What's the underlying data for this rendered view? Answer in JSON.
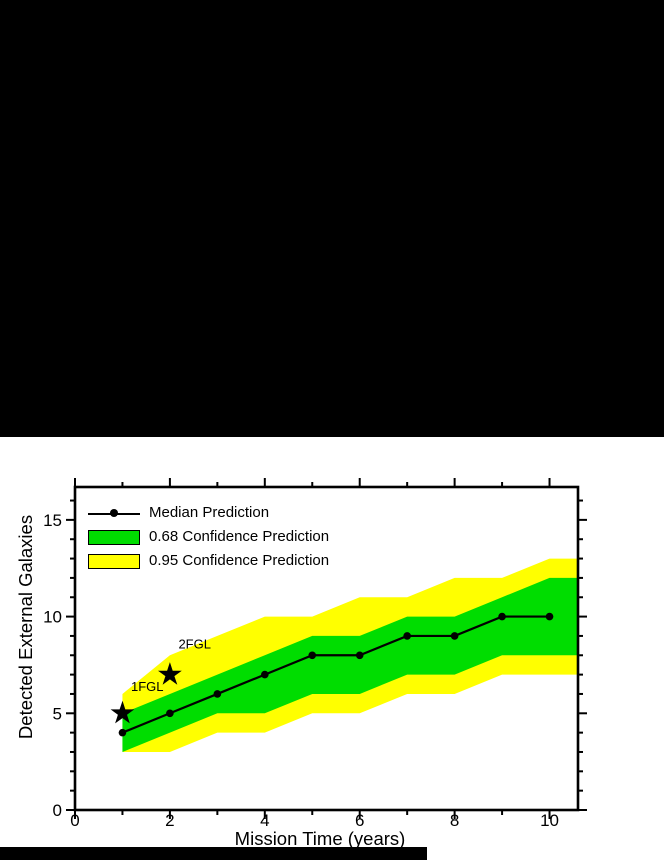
{
  "page": {
    "background": "#000000",
    "panel_background": "#ffffff"
  },
  "chart_data": {
    "type": "line",
    "title": "",
    "xlabel": "Mission Time (years)",
    "ylabel": "Detected External Galaxies",
    "xlim": [
      0,
      10.6
    ],
    "ylim": [
      0,
      16.7
    ],
    "xticks_major": [
      0,
      2,
      4,
      6,
      8,
      10
    ],
    "xticks_minor": [
      1,
      3,
      5,
      7,
      9
    ],
    "yticks_major": [
      0,
      5,
      10,
      15
    ],
    "yticks_minor": [
      1,
      2,
      3,
      4,
      6,
      7,
      8,
      9,
      11,
      12,
      13,
      14,
      16
    ],
    "grid": false,
    "x": [
      1,
      2,
      3,
      4,
      5,
      6,
      7,
      8,
      9,
      10
    ],
    "series": [
      {
        "name": "Median Prediction",
        "type": "line",
        "color": "#000000",
        "values": [
          4,
          5,
          6,
          7,
          8,
          8,
          9,
          9,
          10,
          10
        ]
      },
      {
        "name": "0.68 Confidence Prediction",
        "type": "band",
        "color": "#00dd00",
        "lower": [
          3,
          4,
          5,
          5,
          6,
          6,
          7,
          7,
          8,
          8
        ],
        "upper": [
          5,
          6,
          7,
          8,
          9,
          9,
          10,
          10,
          11,
          12
        ]
      },
      {
        "name": "0.95 Confidence Prediction",
        "type": "band",
        "color": "#ffff00",
        "lower": [
          3,
          3,
          4,
          4,
          5,
          5,
          6,
          6,
          7,
          7
        ],
        "upper": [
          6,
          8,
          9,
          10,
          10,
          11,
          11,
          12,
          12,
          13
        ]
      }
    ],
    "annotations": [
      {
        "label": "1FGL",
        "x": 1,
        "y": 5,
        "marker": "star",
        "label_x": 1.18,
        "label_y": 6.15
      },
      {
        "label": "2FGL",
        "x": 2,
        "y": 7,
        "marker": "star",
        "label_x": 2.18,
        "label_y": 8.35
      }
    ],
    "legend": {
      "position": "top-left"
    }
  }
}
